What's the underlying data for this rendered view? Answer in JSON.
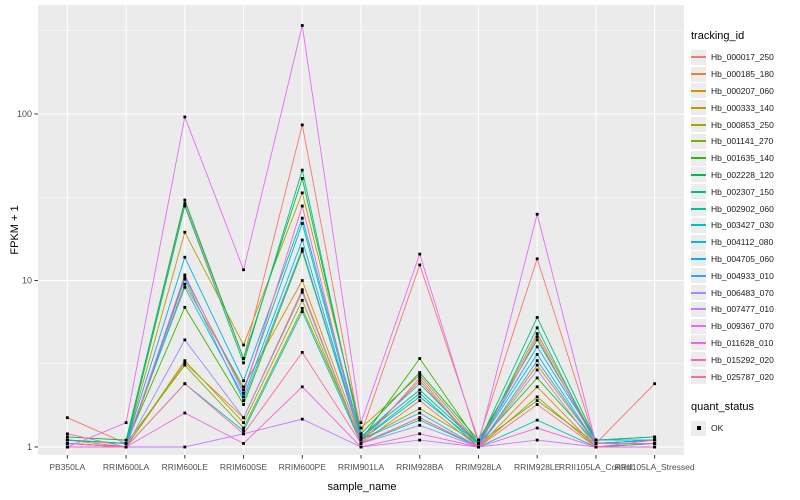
{
  "legend": {
    "tracking_title": "tracking_id",
    "quant_title": "quant_status",
    "quant_items": [
      {
        "label": "OK"
      }
    ]
  },
  "chart_data": {
    "type": "line",
    "title": "",
    "xlabel": "sample_name",
    "ylabel": "FPKM + 1",
    "y_scale": "log10",
    "y_ticks": [
      1,
      10,
      100
    ],
    "y_minor_ticks": [
      3.162,
      31.62,
      316.2
    ],
    "ylim": [
      1,
      460
    ],
    "grid": true,
    "legend_position": "right",
    "point_shape": "square",
    "point_color": "#000000",
    "point_status_label": "OK",
    "panel_background": "#ebebeb",
    "gridline_color": "#ffffff",
    "categories": [
      "PB350LA",
      "RRIM600LA",
      "RRIM600LE",
      "RRIM600SE",
      "RRIM600PE",
      "RRIM901LA",
      "RRIM928BA",
      "RRIM928LA",
      "RRIM928LE",
      "RRII105LA_Control",
      "RRII105LA_Stressed"
    ],
    "series": [
      {
        "name": "Hb_000017_250",
        "color": "#F8766D",
        "values": [
          1.5,
          1.05,
          29,
          3.4,
          86,
          1.2,
          12.4,
          1.1,
          13.5,
          1.05,
          2.4
        ]
      },
      {
        "name": "Hb_000185_180",
        "color": "#EA8331",
        "values": [
          1.05,
          1.0,
          3.2,
          1.5,
          8.8,
          1.05,
          1.9,
          1.0,
          2.3,
          1.0,
          1.05
        ]
      },
      {
        "name": "Hb_000207_060",
        "color": "#D89000",
        "values": [
          1.1,
          1.0,
          9.5,
          2.3,
          10,
          1.1,
          2.5,
          1.0,
          3.1,
          1.05,
          1.1
        ]
      },
      {
        "name": "Hb_000333_140",
        "color": "#C09B00",
        "values": [
          1.1,
          1.05,
          19.5,
          4.1,
          33.6,
          1.3,
          2.7,
          1.05,
          4.8,
          1.1,
          1.1
        ]
      },
      {
        "name": "Hb_000853_250",
        "color": "#A3A500",
        "values": [
          1.05,
          1.0,
          3.3,
          1.4,
          7.6,
          1.05,
          1.5,
          1.0,
          2.0,
          1.0,
          1.05
        ]
      },
      {
        "name": "Hb_001141_270",
        "color": "#7CAE00",
        "values": [
          1.1,
          1.05,
          3.1,
          1.3,
          6.8,
          1.1,
          1.7,
          1.05,
          1.9,
          1.05,
          1.1
        ]
      },
      {
        "name": "Hb_001635_140",
        "color": "#39B600",
        "values": [
          1.1,
          1.05,
          6.9,
          1.8,
          15,
          1.1,
          3.4,
          1.05,
          2.6,
          1.05,
          1.1
        ]
      },
      {
        "name": "Hb_002228_120",
        "color": "#00BB4E",
        "values": [
          1.15,
          1.1,
          30.4,
          3.4,
          41,
          1.2,
          2.8,
          1.1,
          4.4,
          1.1,
          1.15
        ]
      },
      {
        "name": "Hb_002307_150",
        "color": "#00BF7D",
        "values": [
          1.1,
          1.05,
          28,
          3.2,
          46,
          1.15,
          2.2,
          1.05,
          6.0,
          1.1,
          1.15
        ]
      },
      {
        "name": "Hb_002902_060",
        "color": "#00C1A3",
        "values": [
          1.05,
          1.0,
          10.5,
          2.2,
          22,
          1.1,
          2.1,
          1.0,
          5.2,
          1.05,
          1.1
        ]
      },
      {
        "name": "Hb_003427_030",
        "color": "#00BFC4",
        "values": [
          1.05,
          1.0,
          2.4,
          1.25,
          6.5,
          1.05,
          1.45,
          1.0,
          1.45,
          1.0,
          1.05
        ]
      },
      {
        "name": "Hb_004112_080",
        "color": "#00BAE0",
        "values": [
          1.1,
          1.05,
          9.1,
          2.0,
          17.5,
          1.1,
          2.0,
          1.05,
          3.6,
          1.05,
          1.1
        ]
      },
      {
        "name": "Hb_004705_060",
        "color": "#00B0F6",
        "values": [
          1.1,
          1.05,
          13.8,
          2.5,
          23.7,
          1.15,
          2.4,
          1.05,
          4.0,
          1.1,
          1.1
        ]
      },
      {
        "name": "Hb_004933_010",
        "color": "#35A2FF",
        "values": [
          1.05,
          1.0,
          10.2,
          1.9,
          15.5,
          1.1,
          1.6,
          1.0,
          3.3,
          1.05,
          1.05
        ]
      },
      {
        "name": "Hb_006483_070",
        "color": "#9590FF",
        "values": [
          1.0,
          1.0,
          4.4,
          1.5,
          8.5,
          1.05,
          1.35,
          1.0,
          2.9,
          1.0,
          1.0
        ]
      },
      {
        "name": "Hb_007477_010",
        "color": "#C77CFF",
        "values": [
          1.0,
          1.0,
          1.0,
          1.2,
          1.47,
          1.0,
          1.1,
          1.0,
          1.1,
          1.0,
          1.0
        ]
      },
      {
        "name": "Hb_009367_070",
        "color": "#E76BF3",
        "values": [
          1.0,
          1.4,
          96,
          11.6,
          340,
          1.4,
          14.4,
          1.05,
          25,
          1.05,
          1.05
        ]
      },
      {
        "name": "Hb_011628_010",
        "color": "#FA62DB",
        "values": [
          1.0,
          1.0,
          1.6,
          1.05,
          2.3,
          1.0,
          1.2,
          1.0,
          1.3,
          1.0,
          1.0
        ]
      },
      {
        "name": "Hb_015292_020",
        "color": "#FF62BC",
        "values": [
          1.05,
          1.0,
          10.8,
          2.1,
          28,
          1.05,
          2.6,
          1.0,
          4.6,
          1.05,
          1.05
        ]
      },
      {
        "name": "Hb_025787_020",
        "color": "#FF6A98",
        "values": [
          1.2,
          1.0,
          2.4,
          1.2,
          3.7,
          1.05,
          1.5,
          1.0,
          1.8,
          1.0,
          1.1
        ]
      }
    ]
  }
}
